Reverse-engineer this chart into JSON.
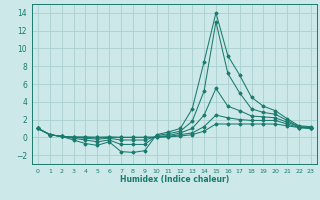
{
  "xlabel": "Humidex (Indice chaleur)",
  "bg_color": "#cce8e8",
  "grid_color": "#aacfcf",
  "line_color": "#1a7a6e",
  "xlim": [
    -0.5,
    23.5
  ],
  "ylim": [
    -3,
    15
  ],
  "xticks": [
    0,
    1,
    2,
    3,
    4,
    5,
    6,
    7,
    8,
    9,
    10,
    11,
    12,
    13,
    14,
    15,
    16,
    17,
    18,
    19,
    20,
    21,
    22,
    23
  ],
  "yticks": [
    -2,
    0,
    2,
    4,
    6,
    8,
    10,
    12,
    14
  ],
  "lines": [
    {
      "x": [
        0,
        1,
        2,
        3,
        4,
        5,
        6,
        7,
        8,
        9,
        10,
        11,
        12,
        13,
        14,
        15,
        16,
        17,
        18,
        19,
        20,
        21,
        22,
        23
      ],
      "y": [
        1.0,
        0.3,
        0.1,
        -0.3,
        -0.7,
        -0.9,
        -0.5,
        -1.6,
        -1.7,
        -1.5,
        0.3,
        0.6,
        1.0,
        3.2,
        8.5,
        14.0,
        9.2,
        7.0,
        4.5,
        3.5,
        3.0,
        2.1,
        1.3,
        1.2
      ]
    },
    {
      "x": [
        0,
        1,
        2,
        3,
        4,
        5,
        6,
        7,
        8,
        9,
        10,
        11,
        12,
        13,
        14,
        15,
        16,
        17,
        18,
        19,
        20,
        21,
        22,
        23
      ],
      "y": [
        1.0,
        0.3,
        0.1,
        -0.1,
        -0.3,
        -0.5,
        -0.3,
        -0.8,
        -0.8,
        -0.8,
        0.2,
        0.4,
        0.7,
        1.8,
        5.2,
        13.0,
        7.2,
        5.0,
        3.2,
        2.8,
        2.6,
        1.9,
        1.2,
        1.1
      ]
    },
    {
      "x": [
        0,
        1,
        2,
        3,
        4,
        5,
        6,
        7,
        8,
        9,
        10,
        11,
        12,
        13,
        14,
        15,
        16,
        17,
        18,
        19,
        20,
        21,
        22,
        23
      ],
      "y": [
        1.0,
        0.3,
        0.1,
        0.0,
        -0.1,
        -0.2,
        -0.1,
        -0.3,
        -0.3,
        -0.3,
        0.1,
        0.2,
        0.5,
        1.0,
        2.5,
        5.5,
        3.5,
        3.0,
        2.4,
        2.3,
        2.2,
        1.7,
        1.2,
        1.1
      ]
    },
    {
      "x": [
        0,
        1,
        2,
        3,
        4,
        5,
        6,
        7,
        8,
        9,
        10,
        11,
        12,
        13,
        14,
        15,
        16,
        17,
        18,
        19,
        20,
        21,
        22,
        23
      ],
      "y": [
        1.0,
        0.3,
        0.1,
        0.05,
        0.05,
        0.0,
        0.05,
        0.0,
        0.0,
        0.0,
        0.05,
        0.1,
        0.3,
        0.5,
        1.2,
        2.5,
        2.2,
        2.0,
        1.9,
        1.9,
        1.9,
        1.5,
        1.1,
        1.0
      ]
    },
    {
      "x": [
        0,
        1,
        2,
        3,
        4,
        5,
        6,
        7,
        8,
        9,
        10,
        11,
        12,
        13,
        14,
        15,
        16,
        17,
        18,
        19,
        20,
        21,
        22,
        23
      ],
      "y": [
        1.0,
        0.3,
        0.1,
        0.0,
        0.0,
        0.0,
        0.0,
        0.0,
        0.0,
        0.0,
        0.0,
        0.05,
        0.15,
        0.3,
        0.7,
        1.5,
        1.5,
        1.5,
        1.5,
        1.5,
        1.5,
        1.3,
        1.1,
        1.0
      ]
    }
  ]
}
